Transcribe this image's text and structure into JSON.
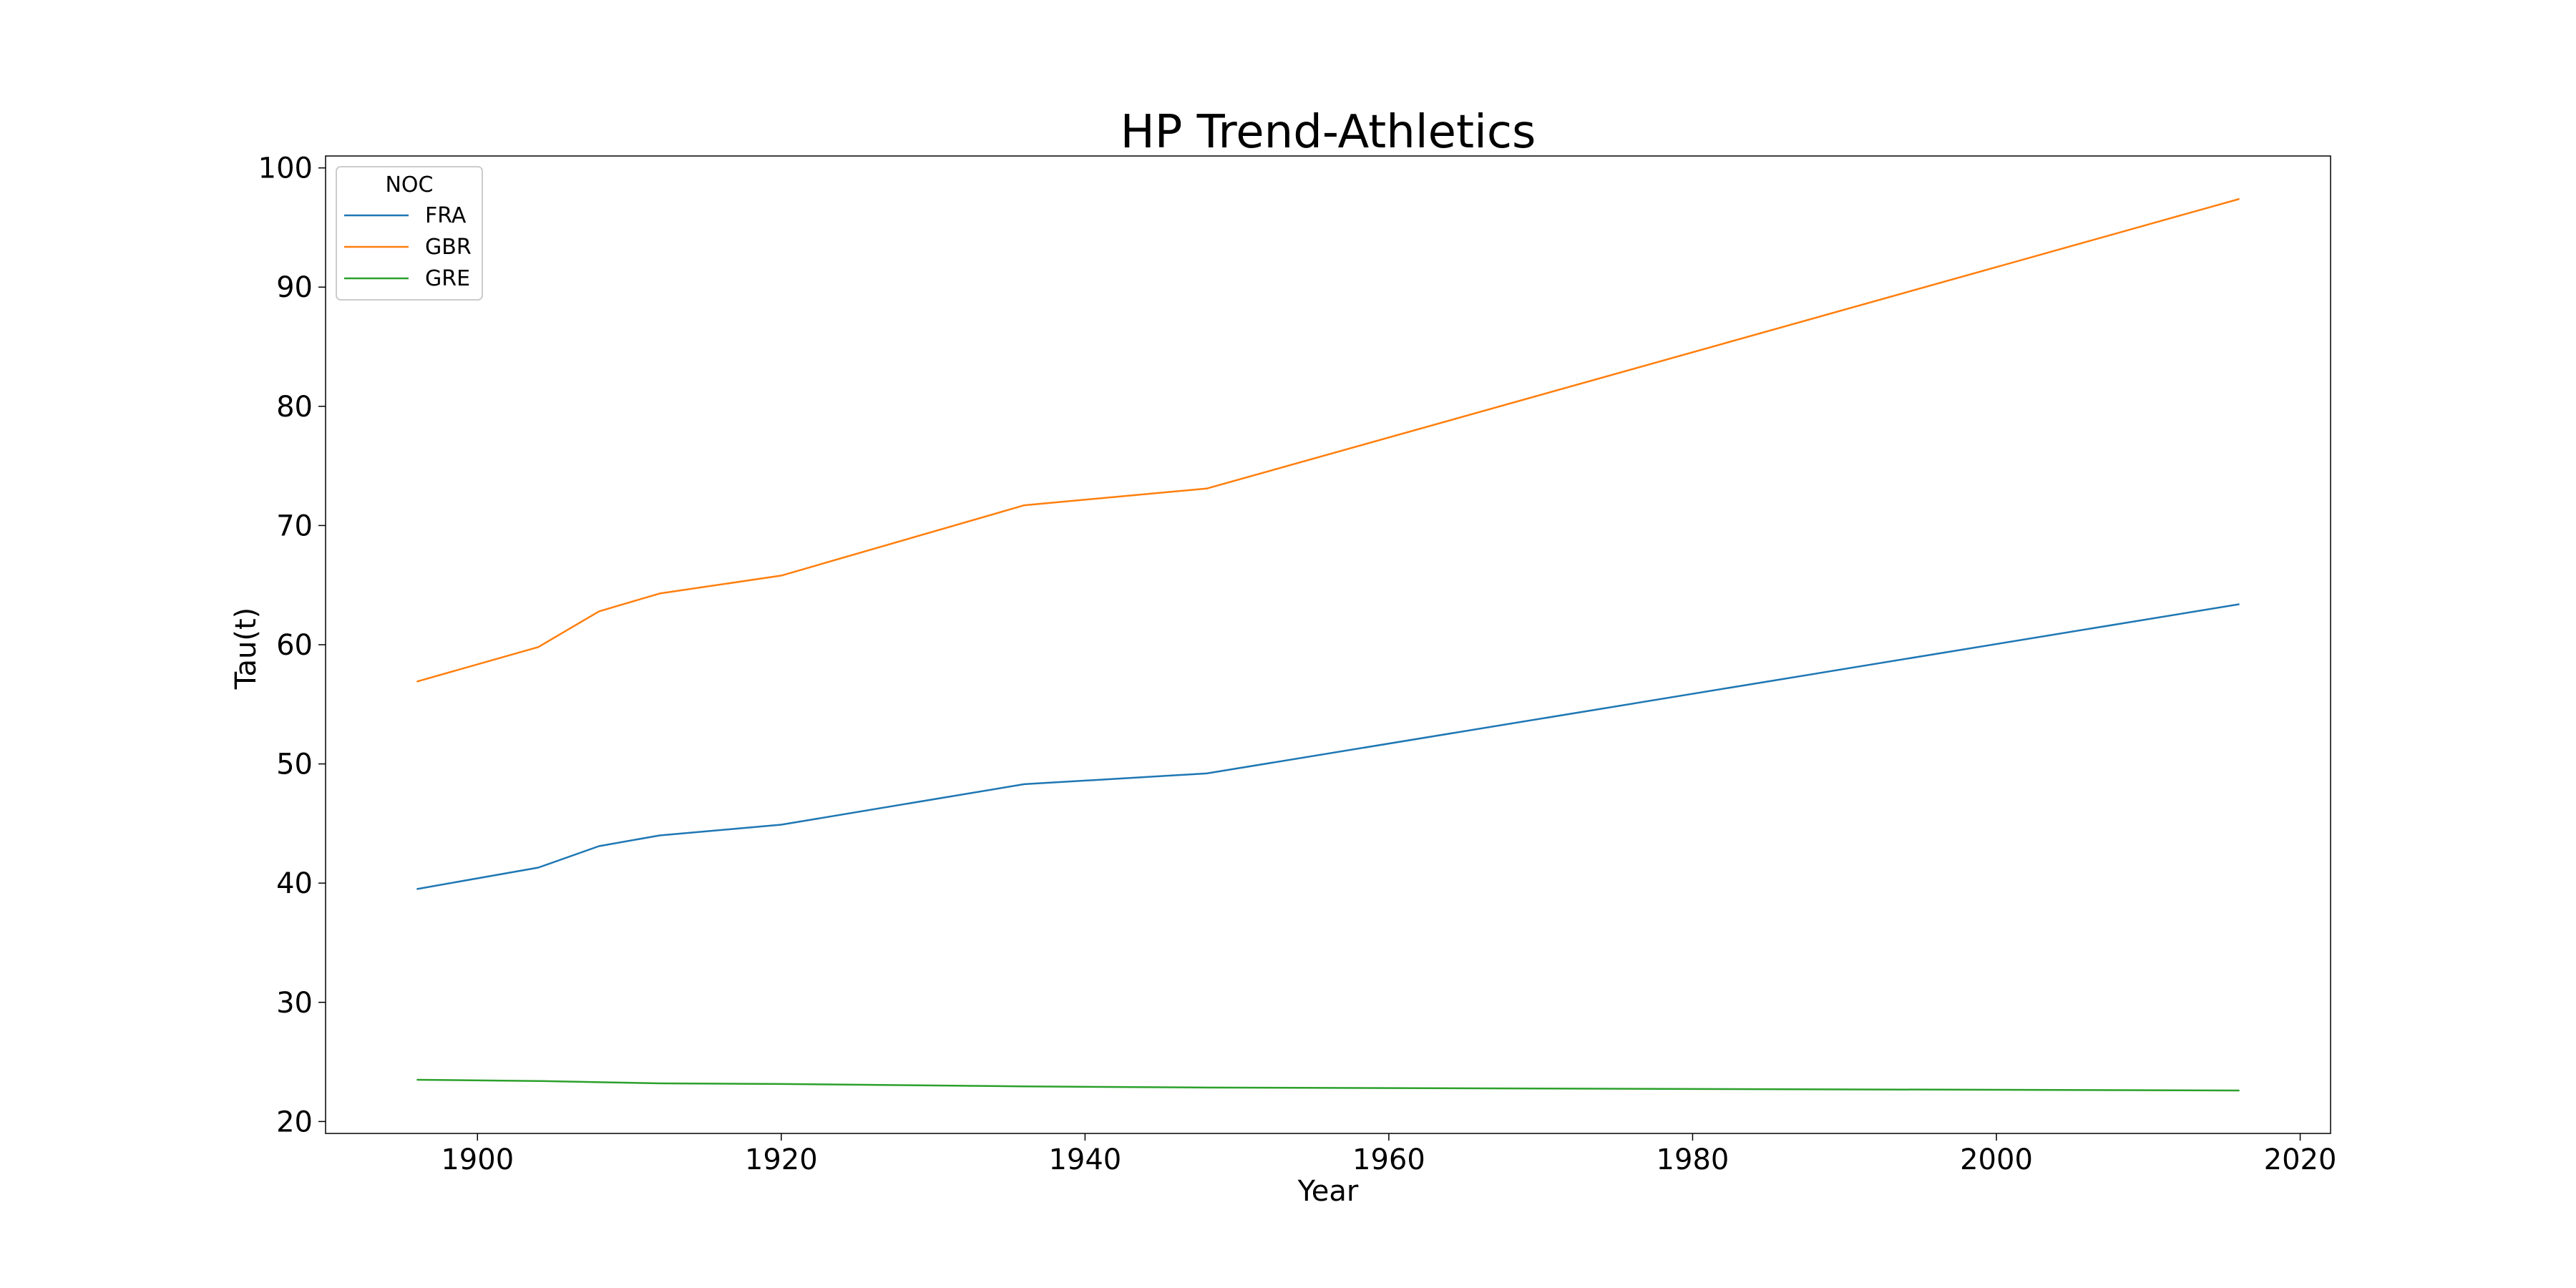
{
  "chart_data": {
    "type": "line",
    "title": "HP Trend-Athletics",
    "xlabel": "Year",
    "ylabel": "Tau(t)",
    "xlim": [
      1890,
      2022
    ],
    "ylim": [
      19,
      101
    ],
    "xticks": [
      1900,
      1920,
      1940,
      1960,
      1980,
      2000,
      2020
    ],
    "yticks": [
      20,
      30,
      40,
      50,
      60,
      70,
      80,
      90,
      100
    ],
    "grid": false,
    "legend": {
      "title": "NOC",
      "placement": "top-left"
    },
    "x": [
      1896,
      1904,
      1908,
      1912,
      1920,
      1936,
      1948,
      2016
    ],
    "series": [
      {
        "name": "FRA",
        "color": "#1f77b4",
        "values": [
          39.5,
          41.3,
          43.1,
          44.0,
          44.9,
          48.3,
          49.2,
          63.4
        ]
      },
      {
        "name": "GBR",
        "color": "#ff7f0e",
        "values": [
          56.9,
          59.8,
          62.8,
          64.3,
          65.8,
          71.7,
          73.1,
          97.4
        ]
      },
      {
        "name": "GRE",
        "color": "#2ca02c",
        "values": [
          23.5,
          23.4,
          23.3,
          23.2,
          23.15,
          22.95,
          22.85,
          22.6
        ]
      }
    ]
  }
}
